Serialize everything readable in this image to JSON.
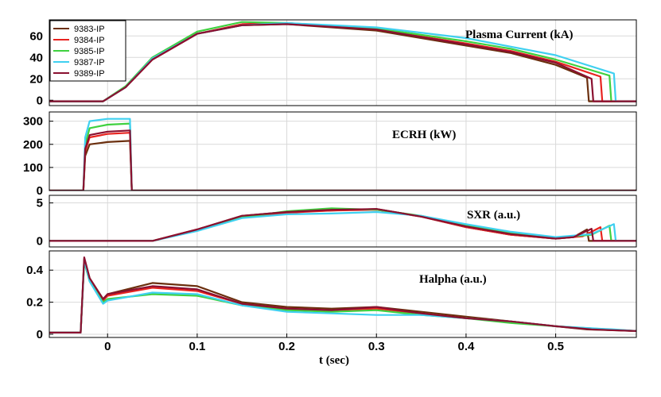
{
  "chart_data": {
    "type": "line",
    "xlabel": "t (sec)",
    "xlim": [
      -0.065,
      0.59
    ],
    "xticks": [
      0,
      0.1,
      0.2,
      0.3,
      0.4,
      0.5
    ],
    "grid": true,
    "legend": {
      "placement": "top-left",
      "entries": [
        {
          "name": "9383-IP",
          "color": "#6b2f0e"
        },
        {
          "name": "9384-IP",
          "color": "#e8231f"
        },
        {
          "name": "9385-IP",
          "color": "#3fd13f"
        },
        {
          "name": "9387-IP",
          "color": "#3fd0f0"
        },
        {
          "name": "9389-IP",
          "color": "#8a1030"
        }
      ]
    },
    "panels": [
      {
        "id": "ip",
        "title": "Plasma Current (kA)",
        "ylim": [
          -5,
          75
        ],
        "yticks": [
          0,
          20,
          40,
          60
        ],
        "series": [
          {
            "name": "9383-IP",
            "color": "#6b2f0e",
            "x": [
              -0.065,
              -0.005,
              0.02,
              0.05,
              0.1,
              0.15,
              0.2,
              0.3,
              0.4,
              0.45,
              0.5,
              0.535,
              0.537,
              0.59
            ],
            "y": [
              -1,
              -1,
              12,
              38,
              62,
              70,
              71,
              65,
              51,
              44,
              33,
              21,
              -1,
              -1
            ]
          },
          {
            "name": "9384-IP",
            "color": "#e8231f",
            "x": [
              -0.065,
              -0.005,
              0.02,
              0.05,
              0.1,
              0.15,
              0.2,
              0.3,
              0.4,
              0.45,
              0.5,
              0.55,
              0.552,
              0.59
            ],
            "y": [
              -1,
              -1,
              12,
              38,
              62,
              71,
              72,
              66,
              53,
              46,
              36,
              22,
              -1,
              -1
            ]
          },
          {
            "name": "9385-IP",
            "color": "#3fd13f",
            "x": [
              -0.065,
              -0.005,
              0.02,
              0.05,
              0.1,
              0.15,
              0.2,
              0.3,
              0.4,
              0.45,
              0.5,
              0.56,
              0.562,
              0.59
            ],
            "y": [
              -1,
              -1,
              13,
              40,
              64,
              73,
              72,
              67,
              55,
              48,
              38,
              23,
              -1,
              -1
            ]
          },
          {
            "name": "9387-IP",
            "color": "#3fd0f0",
            "x": [
              -0.065,
              -0.005,
              0.02,
              0.05,
              0.1,
              0.15,
              0.2,
              0.3,
              0.4,
              0.45,
              0.5,
              0.565,
              0.567,
              0.59
            ],
            "y": [
              -1,
              -1,
              12,
              39,
              62,
              70,
              72,
              68,
              58,
              50,
              42,
              25,
              -1,
              -1
            ]
          },
          {
            "name": "9389-IP",
            "color": "#8a1030",
            "x": [
              -0.065,
              -0.005,
              0.02,
              0.05,
              0.1,
              0.15,
              0.2,
              0.3,
              0.4,
              0.45,
              0.5,
              0.54,
              0.542,
              0.59
            ],
            "y": [
              -1,
              -1,
              12,
              38,
              62,
              70,
              71,
              66,
              52,
              45,
              35,
              20,
              -1,
              -1
            ]
          }
        ]
      },
      {
        "id": "ecrh",
        "title": "ECRH (kW)",
        "ylim": [
          0,
          340
        ],
        "yticks": [
          0,
          100,
          200,
          300
        ],
        "series": [
          {
            "name": "9383-IP",
            "color": "#6b2f0e",
            "x": [
              -0.065,
              -0.027,
              -0.025,
              -0.02,
              0.0,
              0.025,
              0.027,
              0.59
            ],
            "y": [
              0,
              0,
              150,
              200,
              210,
              215,
              0,
              0
            ]
          },
          {
            "name": "9384-IP",
            "color": "#e8231f",
            "x": [
              -0.065,
              -0.027,
              -0.025,
              -0.02,
              0.0,
              0.025,
              0.027,
              0.59
            ],
            "y": [
              0,
              0,
              170,
              230,
              245,
              250,
              0,
              0
            ]
          },
          {
            "name": "9385-IP",
            "color": "#3fd13f",
            "x": [
              -0.065,
              -0.027,
              -0.025,
              -0.02,
              0.0,
              0.025,
              0.027,
              0.59
            ],
            "y": [
              0,
              0,
              200,
              270,
              285,
              290,
              0,
              0
            ]
          },
          {
            "name": "9387-IP",
            "color": "#3fd0f0",
            "x": [
              -0.065,
              -0.027,
              -0.025,
              -0.02,
              0.0,
              0.025,
              0.027,
              0.59
            ],
            "y": [
              0,
              0,
              230,
              300,
              310,
              310,
              0,
              0
            ]
          },
          {
            "name": "9389-IP",
            "color": "#8a1030",
            "x": [
              -0.065,
              -0.027,
              -0.025,
              -0.02,
              0.0,
              0.025,
              0.027,
              0.59
            ],
            "y": [
              0,
              0,
              180,
              240,
              255,
              260,
              0,
              0
            ]
          }
        ]
      },
      {
        "id": "sxr",
        "title": "SXR (a.u.)",
        "ylim": [
          -0.8,
          6
        ],
        "yticks": [
          0,
          5
        ],
        "series": [
          {
            "name": "9383-IP",
            "color": "#6b2f0e",
            "x": [
              -0.065,
              0.05,
              0.1,
              0.15,
              0.2,
              0.25,
              0.3,
              0.35,
              0.4,
              0.45,
              0.5,
              0.52,
              0.535,
              0.537,
              0.59
            ],
            "y": [
              0,
              0,
              1.5,
              3.3,
              3.8,
              4.0,
              4.2,
              3.2,
              1.8,
              0.8,
              0.3,
              0.5,
              1.5,
              0,
              0
            ]
          },
          {
            "name": "9384-IP",
            "color": "#e8231f",
            "x": [
              -0.065,
              0.05,
              0.1,
              0.15,
              0.2,
              0.25,
              0.3,
              0.35,
              0.4,
              0.45,
              0.5,
              0.53,
              0.55,
              0.552,
              0.59
            ],
            "y": [
              0,
              0,
              1.5,
              3.2,
              3.7,
              4.0,
              4.1,
              3.2,
              1.8,
              0.8,
              0.3,
              0.6,
              1.8,
              0,
              0
            ]
          },
          {
            "name": "9385-IP",
            "color": "#3fd13f",
            "x": [
              -0.065,
              0.05,
              0.1,
              0.15,
              0.2,
              0.25,
              0.3,
              0.35,
              0.4,
              0.45,
              0.5,
              0.54,
              0.56,
              0.562,
              0.59
            ],
            "y": [
              0,
              0,
              1.4,
              3.1,
              3.9,
              4.3,
              4.1,
              3.3,
              2.0,
              1.0,
              0.4,
              0.8,
              2.0,
              0,
              0
            ]
          },
          {
            "name": "9387-IP",
            "color": "#3fd0f0",
            "x": [
              -0.065,
              0.05,
              0.1,
              0.15,
              0.2,
              0.25,
              0.3,
              0.35,
              0.4,
              0.45,
              0.5,
              0.54,
              0.565,
              0.567,
              0.59
            ],
            "y": [
              0,
              0,
              1.3,
              3.0,
              3.5,
              3.6,
              3.8,
              3.3,
              2.2,
              1.2,
              0.5,
              0.9,
              2.2,
              0,
              0
            ]
          },
          {
            "name": "9389-IP",
            "color": "#8a1030",
            "x": [
              -0.065,
              0.05,
              0.1,
              0.15,
              0.2,
              0.25,
              0.3,
              0.35,
              0.4,
              0.45,
              0.5,
              0.52,
              0.54,
              0.542,
              0.59
            ],
            "y": [
              0,
              0,
              1.5,
              3.3,
              3.8,
              4.1,
              4.2,
              3.2,
              1.9,
              0.9,
              0.3,
              0.5,
              1.6,
              0,
              0
            ]
          }
        ]
      },
      {
        "id": "halpha",
        "title": "Halpha (a.u.)",
        "ylim": [
          -0.02,
          0.52
        ],
        "yticks": [
          0,
          0.2,
          0.4
        ],
        "series": [
          {
            "name": "9383-IP",
            "color": "#6b2f0e",
            "x": [
              -0.065,
              -0.03,
              -0.026,
              -0.02,
              -0.005,
              0.0,
              0.05,
              0.1,
              0.15,
              0.2,
              0.25,
              0.3,
              0.35,
              0.4,
              0.45,
              0.5,
              0.535,
              0.59
            ],
            "y": [
              0.01,
              0.01,
              0.47,
              0.35,
              0.22,
              0.25,
              0.32,
              0.3,
              0.2,
              0.17,
              0.16,
              0.17,
              0.14,
              0.11,
              0.08,
              0.05,
              0.03,
              0.02
            ]
          },
          {
            "name": "9384-IP",
            "color": "#e8231f",
            "x": [
              -0.065,
              -0.03,
              -0.026,
              -0.02,
              -0.005,
              0.0,
              0.05,
              0.1,
              0.15,
              0.2,
              0.25,
              0.3,
              0.35,
              0.4,
              0.45,
              0.5,
              0.55,
              0.59
            ],
            "y": [
              0.01,
              0.01,
              0.46,
              0.34,
              0.21,
              0.24,
              0.29,
              0.27,
              0.19,
              0.16,
              0.15,
              0.16,
              0.13,
              0.1,
              0.08,
              0.05,
              0.03,
              0.02
            ]
          },
          {
            "name": "9385-IP",
            "color": "#3fd13f",
            "x": [
              -0.065,
              -0.03,
              -0.026,
              -0.02,
              -0.005,
              0.0,
              0.05,
              0.1,
              0.15,
              0.2,
              0.25,
              0.3,
              0.35,
              0.4,
              0.45,
              0.5,
              0.56,
              0.59
            ],
            "y": [
              0.01,
              0.01,
              0.45,
              0.33,
              0.2,
              0.22,
              0.25,
              0.24,
              0.18,
              0.15,
              0.14,
              0.15,
              0.12,
              0.1,
              0.07,
              0.05,
              0.03,
              0.02
            ]
          },
          {
            "name": "9387-IP",
            "color": "#3fd0f0",
            "x": [
              -0.065,
              -0.03,
              -0.026,
              -0.02,
              -0.005,
              0.0,
              0.05,
              0.1,
              0.15,
              0.2,
              0.25,
              0.3,
              0.35,
              0.4,
              0.45,
              0.5,
              0.565,
              0.59
            ],
            "y": [
              0.01,
              0.01,
              0.46,
              0.33,
              0.19,
              0.21,
              0.26,
              0.25,
              0.18,
              0.14,
              0.13,
              0.12,
              0.12,
              0.1,
              0.08,
              0.05,
              0.03,
              0.02
            ]
          },
          {
            "name": "9389-IP",
            "color": "#8a1030",
            "x": [
              -0.065,
              -0.03,
              -0.026,
              -0.02,
              -0.005,
              0.0,
              0.05,
              0.1,
              0.15,
              0.2,
              0.25,
              0.3,
              0.35,
              0.4,
              0.45,
              0.5,
              0.54,
              0.59
            ],
            "y": [
              0.01,
              0.01,
              0.48,
              0.35,
              0.22,
              0.25,
              0.3,
              0.28,
              0.19,
              0.16,
              0.15,
              0.17,
              0.13,
              0.1,
              0.08,
              0.05,
              0.03,
              0.02
            ]
          }
        ]
      }
    ]
  }
}
